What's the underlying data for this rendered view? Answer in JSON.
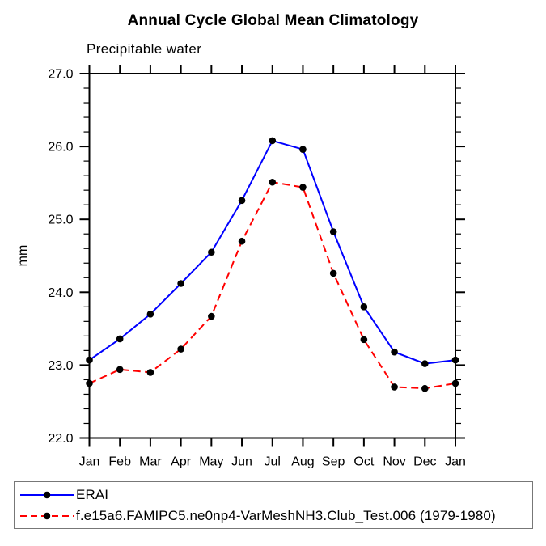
{
  "title": "Annual Cycle Global Mean Climatology",
  "subtitle": "Precipitable water",
  "chart_data": {
    "type": "line",
    "x": [
      "Jan",
      "Feb",
      "Mar",
      "Apr",
      "May",
      "Jun",
      "Jul",
      "Aug",
      "Sep",
      "Oct",
      "Nov",
      "Dec",
      "Jan"
    ],
    "xlabel": "",
    "ylabel": "mm",
    "ylim": [
      22.0,
      27.0
    ],
    "ytick_labels": [
      "22.0",
      "23.0",
      "24.0",
      "25.0",
      "26.0",
      "27.0"
    ],
    "ytick_major": [
      22.0,
      23.0,
      24.0,
      25.0,
      26.0,
      27.0
    ],
    "ytick_minor_interval": 0.2,
    "grid": false,
    "legend_position": "bottom-left-box",
    "axis_color": "#000000",
    "marker": "filled-circle",
    "marker_color": "#000000",
    "series": [
      {
        "name": "ERAI",
        "color": "#0000ff",
        "style": "solid",
        "values": [
          23.07,
          23.36,
          23.7,
          24.12,
          24.55,
          25.26,
          26.08,
          25.96,
          24.83,
          23.8,
          23.18,
          23.02,
          23.07
        ]
      },
      {
        "name": "f.e15a6.FAMIPC5.ne0np4-VarMeshNH3.Club_Test.006 (1979-1980)",
        "color": "#ff0000",
        "style": "dashed",
        "values": [
          22.75,
          22.94,
          22.9,
          23.22,
          23.67,
          24.7,
          25.51,
          25.44,
          24.26,
          23.35,
          22.7,
          22.68,
          22.75
        ]
      }
    ]
  }
}
